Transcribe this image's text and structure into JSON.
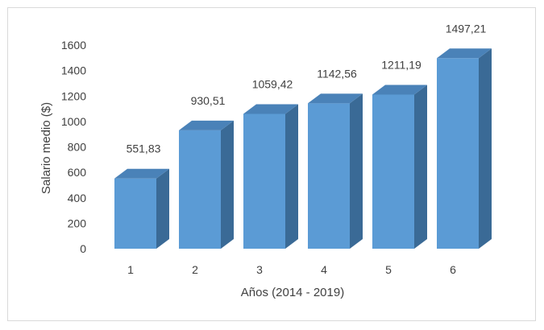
{
  "chart_data": {
    "type": "bar",
    "title": "",
    "xlabel": "Años (2014 - 2019)",
    "ylabel": "Salario medio ($)",
    "categories": [
      "1",
      "2",
      "3",
      "4",
      "5",
      "6"
    ],
    "values": [
      551.83,
      930.51,
      1059.42,
      1142.56,
      1211.19,
      1497.21
    ],
    "data_labels": [
      "551,83",
      "930,51",
      "1059,42",
      "1142,56",
      "1211,19",
      "1497,21"
    ],
    "ylim": [
      0,
      1600
    ],
    "yticks": [
      0,
      200,
      400,
      600,
      800,
      1000,
      1200,
      1400,
      1600
    ],
    "grid": false,
    "legend": "none",
    "style": "3d-column",
    "colors": {
      "front": "#5b9bd5",
      "top": "#4a82b8",
      "side": "#3a6a96"
    }
  }
}
